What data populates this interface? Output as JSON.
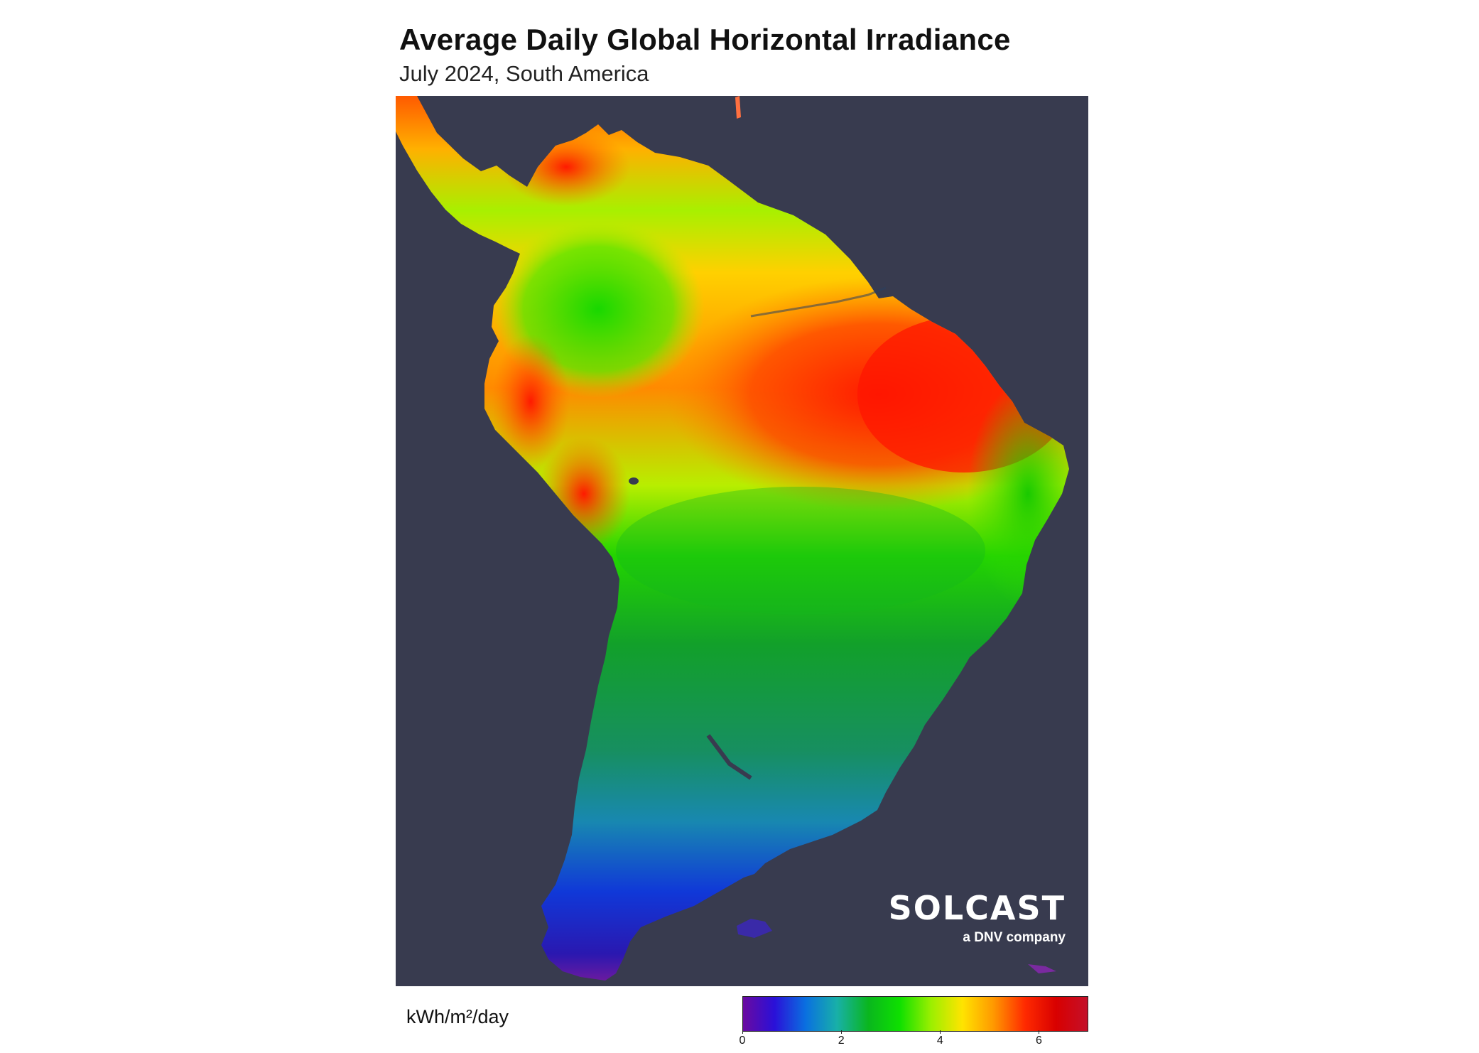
{
  "title": "Average Daily Global Horizontal Irradiance",
  "subtitle": "July 2024, South America",
  "logo": {
    "wordmark": "SOLCAST",
    "tagline": "a DNV company",
    "icon": "sun-gauge-icon"
  },
  "legend": {
    "unit": "kWh/m²/day",
    "min": 0,
    "max": 7,
    "ticks": [
      "0",
      "2",
      "4",
      "6"
    ],
    "colors": [
      "#6a0aa0",
      "#2a10d8",
      "#0a70e0",
      "#18b0a8",
      "#0ab61e",
      "#0ee000",
      "#9bef00",
      "#ffe400",
      "#ff9800",
      "#ff2a00",
      "#d80000",
      "#c4102a"
    ]
  },
  "map": {
    "background": "#383b4f",
    "region": "South America"
  }
}
